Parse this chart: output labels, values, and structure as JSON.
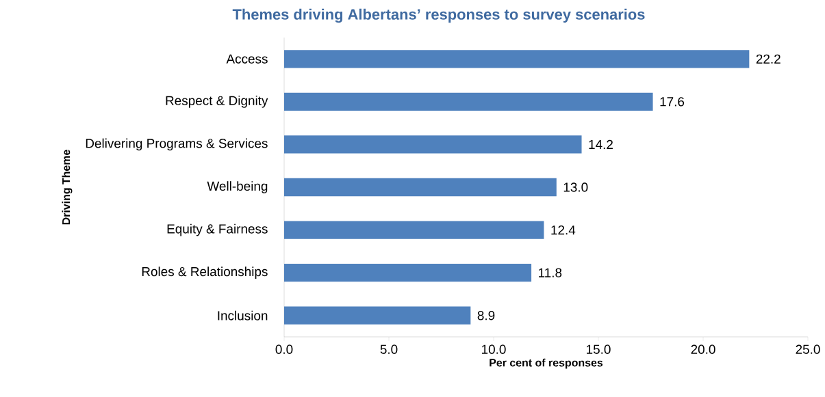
{
  "chart_data": {
    "type": "bar",
    "orientation": "horizontal",
    "title": "Themes driving Albertans’ responses to survey scenarios",
    "xlabel": "Per cent of responses",
    "ylabel": "Driving Theme",
    "categories": [
      "Access",
      "Respect & Dignity",
      "Delivering Programs & Services",
      "Well-being",
      "Equity & Fairness",
      "Roles & Relationships",
      "Inclusion"
    ],
    "values": [
      22.2,
      17.6,
      14.2,
      13.0,
      12.4,
      11.8,
      8.9
    ],
    "value_labels": [
      "22.2",
      "17.6",
      "14.2",
      "13.0",
      "12.4",
      "11.8",
      "8.9"
    ],
    "color": "#4f81bd",
    "xlim": [
      0,
      25
    ],
    "xticks": [
      {
        "value": 0,
        "label": "0.0"
      },
      {
        "value": 5,
        "label": "5.0"
      },
      {
        "value": 10,
        "label": "10.0"
      },
      {
        "value": 15,
        "label": "15.0"
      },
      {
        "value": 20,
        "label": "20.0"
      },
      {
        "value": 25,
        "label": "25.0"
      }
    ]
  }
}
